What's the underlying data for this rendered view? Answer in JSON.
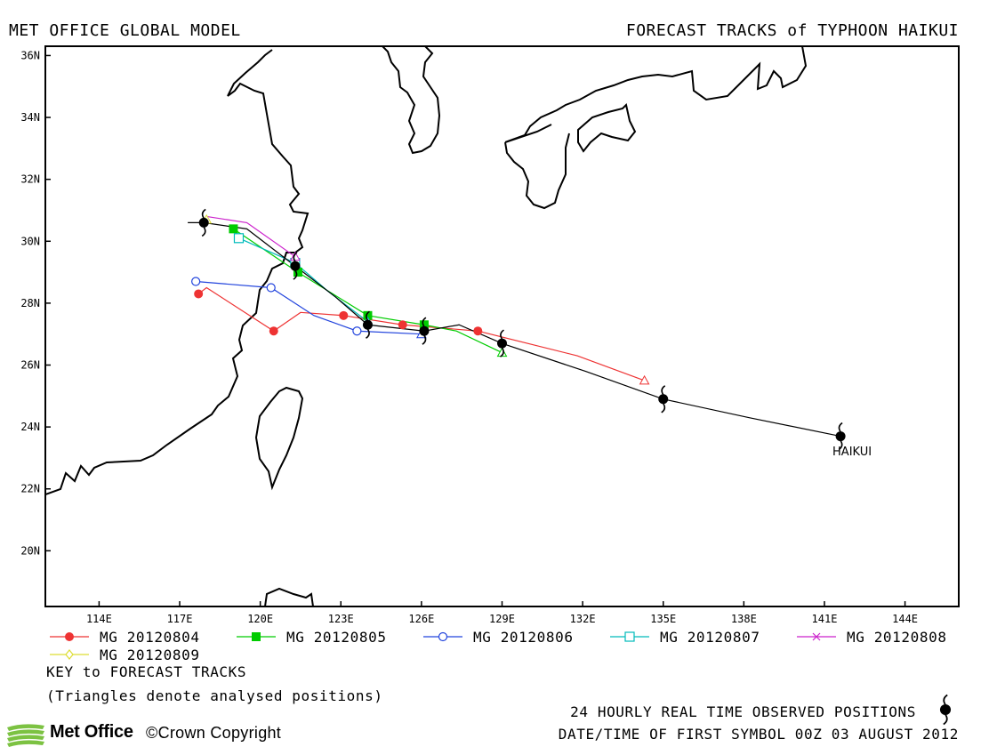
{
  "header": {
    "left_title": "MET OFFICE GLOBAL MODEL",
    "right_title": "FORECAST TRACKS of TYPHOON HAIKUI"
  },
  "map": {
    "lon_range": [
      112,
      146
    ],
    "lat_range": [
      18.2,
      36.3
    ],
    "lon_ticks": [
      "114E",
      "117E",
      "120E",
      "123E",
      "126E",
      "129E",
      "132E",
      "135E",
      "138E",
      "141E",
      "144E"
    ],
    "lon_tick_values": [
      114,
      117,
      120,
      123,
      126,
      129,
      132,
      135,
      138,
      141,
      144
    ],
    "lat_ticks": [
      "20N",
      "22N",
      "24N",
      "26N",
      "28N",
      "30N",
      "32N",
      "34N",
      "36N"
    ],
    "lat_tick_values": [
      20,
      22,
      24,
      26,
      28,
      30,
      32,
      34,
      36
    ],
    "storm_label": "HAIKUI",
    "storm_label_pos": [
      141.3,
      23.2
    ],
    "observed_track": [
      [
        141.6,
        23.7
      ],
      [
        135.0,
        24.9
      ],
      [
        129.0,
        26.7
      ],
      [
        126.1,
        27.1
      ],
      [
        124.0,
        27.3
      ],
      [
        121.3,
        29.2
      ],
      [
        117.9,
        30.6
      ]
    ],
    "observed_extension": [
      [
        141.6,
        23.7
      ],
      [
        138.2,
        24.3
      ],
      [
        135.0,
        24.9
      ],
      [
        132.1,
        25.8
      ],
      [
        129.0,
        26.7
      ],
      [
        127.4,
        27.3
      ],
      [
        126.1,
        27.1
      ],
      [
        124.0,
        27.3
      ],
      [
        122.8,
        28.2
      ],
      [
        121.3,
        29.2
      ],
      [
        119.5,
        30.4
      ],
      [
        117.9,
        30.6
      ],
      [
        117.3,
        30.6
      ]
    ],
    "series": [
      {
        "name": "MG 20120804",
        "color": "#ee3333",
        "marker": "dot",
        "points": [
          [
            134.3,
            25.5
          ],
          [
            131.8,
            26.3
          ],
          [
            128.1,
            27.1
          ],
          [
            125.3,
            27.3
          ],
          [
            123.1,
            27.6
          ],
          [
            121.5,
            27.7
          ],
          [
            120.5,
            27.1
          ],
          [
            118.0,
            28.5
          ],
          [
            117.7,
            28.3
          ]
        ],
        "marker_points": [
          [
            128.1,
            27.1
          ],
          [
            125.3,
            27.3
          ],
          [
            123.1,
            27.6
          ],
          [
            120.5,
            27.1
          ],
          [
            117.7,
            28.3
          ]
        ],
        "analysed": [
          134.3,
          25.5
        ]
      },
      {
        "name": "MG 20120805",
        "color": "#00cc00",
        "marker": "square",
        "points": [
          [
            129.0,
            26.4
          ],
          [
            127.3,
            27.1
          ],
          [
            126.1,
            27.3
          ],
          [
            124.0,
            27.6
          ],
          [
            121.4,
            29.0
          ],
          [
            119.0,
            30.4
          ]
        ],
        "marker_points": [
          [
            126.1,
            27.3
          ],
          [
            124.0,
            27.6
          ],
          [
            121.4,
            29.0
          ],
          [
            119.0,
            30.4
          ]
        ],
        "analysed": [
          129.0,
          26.4
        ]
      },
      {
        "name": "MG 20120806",
        "color": "#2244dd",
        "marker": "circle",
        "points": [
          [
            126.0,
            27.0
          ],
          [
            123.6,
            27.1
          ],
          [
            122.0,
            27.6
          ],
          [
            120.4,
            28.5
          ],
          [
            117.6,
            28.7
          ]
        ],
        "marker_points": [
          [
            123.6,
            27.1
          ],
          [
            120.4,
            28.5
          ],
          [
            117.6,
            28.7
          ]
        ],
        "analysed": [
          126.0,
          27.0
        ]
      },
      {
        "name": "MG 20120807",
        "color": "#00bbbb",
        "marker": "open-square",
        "points": [
          [
            124.0,
            27.4
          ],
          [
            122.5,
            28.4
          ],
          [
            121.3,
            29.3
          ],
          [
            119.2,
            30.1
          ]
        ],
        "marker_points": [
          [
            121.3,
            29.3
          ],
          [
            119.2,
            30.1
          ]
        ],
        "analysed": [
          124.0,
          27.4
        ]
      },
      {
        "name": "MG 20120808",
        "color": "#cc22cc",
        "marker": "x",
        "points": [
          [
            121.3,
            29.5
          ],
          [
            119.5,
            30.6
          ],
          [
            118.0,
            30.8
          ]
        ],
        "marker_points": [],
        "analysed": [
          121.3,
          29.5
        ]
      },
      {
        "name": "MG 20120809",
        "color": "#dddd33",
        "marker": "diamond",
        "points": [
          [
            118.0,
            30.7
          ],
          [
            117.9,
            30.6
          ]
        ],
        "marker_points": [],
        "analysed": [
          118.0,
          30.7
        ]
      }
    ]
  },
  "legend": {
    "key_title": "KEY to FORECAST TRACKS",
    "key_note": "(Triangles denote analysed positions)"
  },
  "footer": {
    "observed_note": "24 HOURLY REAL TIME OBSERVED POSITIONS",
    "datetime_note": "DATE/TIME OF FIRST SYMBOL 00Z 03 AUGUST 2012",
    "logo_text": "Met Office",
    "copyright": "©Crown Copyright"
  }
}
